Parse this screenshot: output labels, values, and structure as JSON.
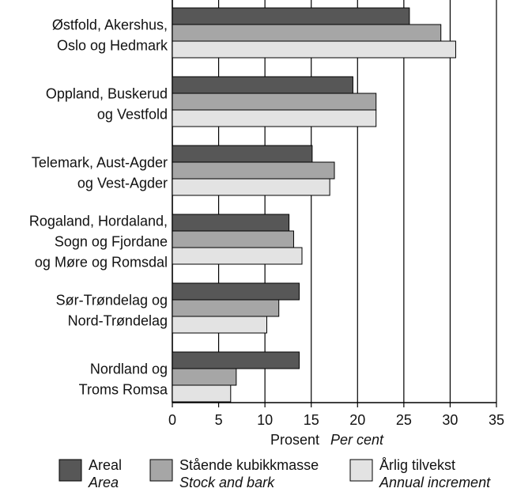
{
  "chart_data": {
    "type": "hbar",
    "categories": [
      [
        "Østfold, Akershus,",
        "Oslo og Hedmark"
      ],
      [
        "Oppland, Buskerud",
        "og Vestfold"
      ],
      [
        "Telemark, Aust-Agder",
        "og Vest-Agder"
      ],
      [
        "Rogaland, Hordaland,",
        "Sogn og Fjordane",
        "og Møre og Romsdal"
      ],
      [
        "Sør-Trøndelag og",
        "Nord-Trøndelag"
      ],
      [
        "Nordland og",
        "Troms Romsa"
      ]
    ],
    "series": [
      {
        "name": "Areal",
        "name_en": "Area",
        "color": "#575757",
        "values": [
          25.6,
          19.5,
          15.1,
          12.6,
          13.7,
          13.7
        ]
      },
      {
        "name": "Stående kubikkmasse",
        "name_en": "Stock and bark",
        "color": "#a6a6a6",
        "values": [
          29.0,
          22.0,
          17.5,
          13.1,
          11.5,
          6.9
        ]
      },
      {
        "name": "Årlig tilvekst",
        "name_en": "Annual increment",
        "color": "#e3e3e3",
        "values": [
          30.6,
          22.0,
          17.0,
          14.0,
          10.2,
          6.3
        ]
      }
    ],
    "xlabel": "Prosent",
    "xlabel_en": "Per cent",
    "xlim": [
      0,
      35
    ],
    "xticks": [
      0,
      5,
      10,
      15,
      20,
      25,
      30,
      35
    ],
    "grid": true
  }
}
